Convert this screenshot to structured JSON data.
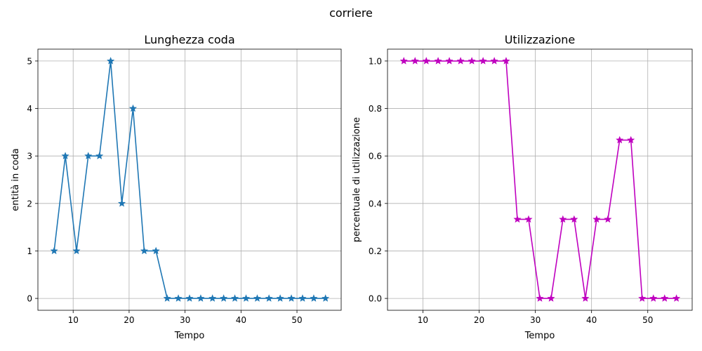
{
  "suptitle": "corriere",
  "chart_data": [
    {
      "type": "line",
      "title": "Lunghezza coda",
      "xlabel": "Tempo",
      "ylabel": "entità in coda",
      "xlim": [
        3.7,
        57.9
      ],
      "ylim": [
        -0.25,
        5.25
      ],
      "xticks": [
        10,
        20,
        30,
        40,
        50
      ],
      "yticks": [
        0,
        1,
        2,
        3,
        4,
        5
      ],
      "grid": true,
      "color": "#1f77b4",
      "marker": "star",
      "x": [
        6.6,
        8.6,
        10.6,
        12.7,
        14.7,
        16.7,
        18.7,
        20.7,
        22.7,
        24.8,
        26.8,
        28.8,
        30.8,
        32.8,
        34.9,
        36.9,
        38.9,
        40.9,
        42.9,
        45.0,
        47.0,
        49.0,
        51.0,
        53.0,
        55.1
      ],
      "y": [
        1,
        3,
        1,
        3,
        3,
        5,
        2,
        4,
        1,
        1,
        0,
        0,
        0,
        0,
        0,
        0,
        0,
        0,
        0,
        0,
        0,
        0,
        0,
        0,
        0
      ]
    },
    {
      "type": "line",
      "title": "Utilizzazione",
      "xlabel": "Tempo",
      "ylabel": "percentuale di utilizzazione",
      "xlim": [
        3.7,
        57.9
      ],
      "ylim": [
        -0.05,
        1.05
      ],
      "xticks": [
        10,
        20,
        30,
        40,
        50
      ],
      "yticks": [
        0.0,
        0.2,
        0.4,
        0.6,
        0.8,
        1.0
      ],
      "ytick_labels": [
        "0.0",
        "0.2",
        "0.4",
        "0.6",
        "0.8",
        "1.0"
      ],
      "grid": true,
      "color": "#bf00bf",
      "marker": "star",
      "x": [
        6.6,
        8.6,
        10.6,
        12.7,
        14.7,
        16.7,
        18.7,
        20.7,
        22.7,
        24.8,
        26.8,
        28.8,
        30.8,
        32.8,
        34.9,
        36.9,
        38.9,
        40.9,
        42.9,
        45.0,
        47.0,
        49.0,
        51.0,
        53.0,
        55.1
      ],
      "y": [
        1,
        1,
        1,
        1,
        1,
        1,
        1,
        1,
        1,
        1,
        0.333,
        0.333,
        0,
        0,
        0.333,
        0.333,
        0,
        0.333,
        0.333,
        0.667,
        0.667,
        0,
        0,
        0,
        0
      ]
    }
  ]
}
